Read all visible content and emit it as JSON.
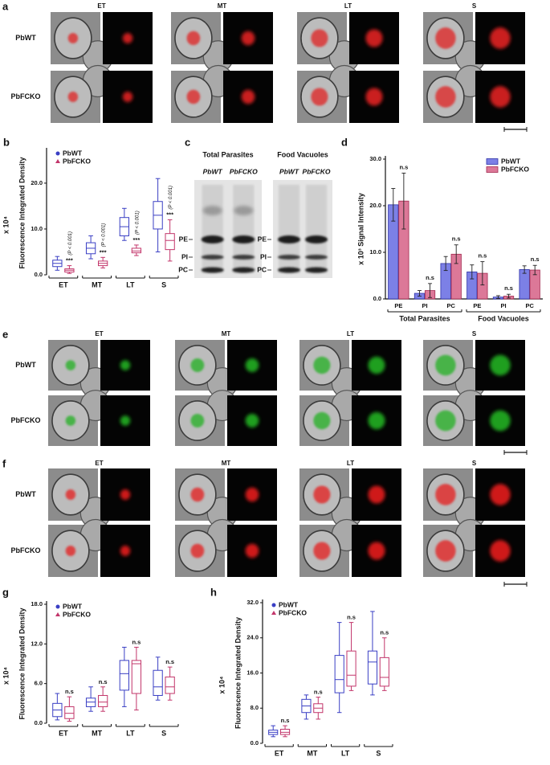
{
  "panels": {
    "a": {
      "label": "a",
      "columns": [
        "ET",
        "MT",
        "LT",
        "S"
      ],
      "rows": [
        "PbWT",
        "PbFCKO"
      ]
    },
    "c": {
      "label": "c",
      "gels": [
        {
          "title": "Total Parasites",
          "lanes": [
            "PbWT",
            "PbFCKO"
          ],
          "bands": [
            "PE",
            "PI",
            "PC"
          ]
        },
        {
          "title": "Food Vacuoles",
          "lanes": [
            "PbWT",
            "PbFCKO"
          ],
          "bands": [
            "PE",
            "PI",
            "PC"
          ]
        }
      ]
    },
    "e": {
      "label": "e",
      "columns": [
        "ET",
        "MT",
        "LT",
        "S"
      ],
      "rows": [
        "PbWT",
        "PbFCKO"
      ]
    },
    "f": {
      "label": "f",
      "columns": [
        "ET",
        "MT",
        "LT",
        "S"
      ],
      "rows": [
        "PbWT",
        "PbFCKO"
      ]
    }
  },
  "chart_data": [
    {
      "type": "box",
      "label": "b",
      "y_label": "Fluorescence Integrated Density",
      "y_scale_label": "x 10⁴",
      "ylim": [
        0,
        27
      ],
      "yticks": [
        {
          "value": 0,
          "label": "0.0"
        },
        {
          "value": 10,
          "label": "10.0"
        },
        {
          "value": 20,
          "label": "20.0"
        }
      ],
      "categories": [
        "ET",
        "MT",
        "LT",
        "S"
      ],
      "legend": "upper left",
      "series": [
        {
          "name": "PbWT",
          "color": "#3a3fc4",
          "marker": "circle",
          "boxes": [
            {
              "min": 1,
              "q1": 1.8,
              "median": 2.5,
              "q3": 3.2,
              "max": 4
            },
            {
              "min": 3.5,
              "q1": 4.6,
              "median": 5.8,
              "q3": 7,
              "max": 8.5
            },
            {
              "min": 7.5,
              "q1": 8.5,
              "median": 10.5,
              "q3": 12.5,
              "max": 14.5
            },
            {
              "min": 5,
              "q1": 10,
              "median": 13,
              "q3": 16,
              "max": 21
            }
          ]
        },
        {
          "name": "PbFCKO",
          "color": "#c2356a",
          "marker": "triangle",
          "boxes": [
            {
              "min": 0.3,
              "q1": 0.6,
              "median": 1,
              "q3": 1.3,
              "max": 2
            },
            {
              "min": 1.5,
              "q1": 2,
              "median": 2.5,
              "q3": 3,
              "max": 3.8
            },
            {
              "min": 4.2,
              "q1": 4.8,
              "median": 5.2,
              "q3": 5.8,
              "max": 6.5
            },
            {
              "min": 3,
              "q1": 5.5,
              "median": 7.5,
              "q3": 9,
              "max": 12
            }
          ],
          "annotations": [
            "***",
            "***",
            "***",
            "***"
          ],
          "p_labels": [
            "(P < 0.001)",
            "(P < 0.001)",
            "(P < 0.001)",
            "(P < 0.001)"
          ]
        }
      ]
    },
    {
      "type": "bar",
      "label": "d",
      "y_label": "x 10³ Signal Intensity",
      "ylim": [
        0,
        30
      ],
      "yticks": [
        {
          "value": 0,
          "label": "0.0"
        },
        {
          "value": 10,
          "label": "10.0"
        },
        {
          "value": 20,
          "label": "20.0"
        },
        {
          "value": 30,
          "label": "30.0"
        }
      ],
      "categories": [
        "PE",
        "PI",
        "PC",
        "PE",
        "PI",
        "PC"
      ],
      "groups": [
        "Total Parasites",
        "Food Vacuoles"
      ],
      "legend": "upper right",
      "series": [
        {
          "name": "PbWT",
          "color": "#2f33a8",
          "fill": "#7c80e6",
          "values": [
            20.2,
            1.2,
            7.6,
            5.8,
            0.4,
            6.3
          ],
          "errors": [
            3.5,
            0.6,
            1.5,
            1.5,
            0.3,
            0.8
          ]
        },
        {
          "name": "PbFCKO",
          "color": "#a3294f",
          "fill": "#dc7898",
          "values": [
            21,
            1.8,
            9.6,
            5.5,
            0.6,
            6.2
          ],
          "errors": [
            6,
            1.5,
            2,
            2.5,
            0.4,
            1
          ],
          "annotations": [
            "n.s",
            "n.s",
            "n.s",
            "n.s",
            "n.s",
            "n.s"
          ]
        }
      ]
    },
    {
      "type": "box",
      "label": "g",
      "y_label": "Fluorescence Integrated Density",
      "y_scale_label": "x 10⁴",
      "ylim": [
        0,
        18
      ],
      "yticks": [
        {
          "value": 0,
          "label": "0.0"
        },
        {
          "value": 6,
          "label": "6.0"
        },
        {
          "value": 12,
          "label": "12.0"
        },
        {
          "value": 18,
          "label": "18.0"
        }
      ],
      "categories": [
        "ET",
        "MT",
        "LT",
        "S"
      ],
      "legend": "upper left",
      "series": [
        {
          "name": "PbWT",
          "color": "#3a3fc4",
          "marker": "circle",
          "boxes": [
            {
              "min": 0.5,
              "q1": 1,
              "median": 2,
              "q3": 3,
              "max": 4.5
            },
            {
              "min": 1.8,
              "q1": 2.5,
              "median": 3.2,
              "q3": 3.8,
              "max": 5.5
            },
            {
              "min": 2.5,
              "q1": 5,
              "median": 7.5,
              "q3": 9.5,
              "max": 11.5
            },
            {
              "min": 3.5,
              "q1": 4.2,
              "median": 5.5,
              "q3": 8,
              "max": 10
            }
          ]
        },
        {
          "name": "PbFCKO",
          "color": "#c2356a",
          "marker": "triangle",
          "boxes": [
            {
              "min": 0.3,
              "q1": 0.7,
              "median": 1.5,
              "q3": 2.5,
              "max": 4
            },
            {
              "min": 1.8,
              "q1": 2.5,
              "median": 3.2,
              "q3": 4.2,
              "max": 5.5
            },
            {
              "min": 2,
              "q1": 4.5,
              "median": 9,
              "q3": 9.5,
              "max": 11.5
            },
            {
              "min": 3.5,
              "q1": 4.5,
              "median": 5.5,
              "q3": 7,
              "max": 8.5
            }
          ],
          "annotations": [
            "n.s",
            "n.s",
            "n.s",
            "n.s"
          ]
        }
      ]
    },
    {
      "type": "box",
      "label": "h",
      "y_label": "Fluorescence Integrated Density",
      "y_scale_label": "x 10⁴",
      "ylim": [
        0,
        32
      ],
      "yticks": [
        {
          "value": 0,
          "label": "0.0"
        },
        {
          "value": 8,
          "label": "8.0"
        },
        {
          "value": 16,
          "label": "16.0"
        },
        {
          "value": 24,
          "label": "24.0"
        },
        {
          "value": 32,
          "label": "32.0"
        }
      ],
      "categories": [
        "ET",
        "MT",
        "LT",
        "S"
      ],
      "legend": "upper left",
      "series": [
        {
          "name": "PbWT",
          "color": "#3a3fc4",
          "marker": "circle",
          "boxes": [
            {
              "min": 1.5,
              "q1": 2,
              "median": 2.5,
              "q3": 3,
              "max": 4
            },
            {
              "min": 5.5,
              "q1": 7,
              "median": 8.5,
              "q3": 10,
              "max": 11
            },
            {
              "min": 7,
              "q1": 11.5,
              "median": 14.5,
              "q3": 20,
              "max": 27.5
            },
            {
              "min": 11,
              "q1": 13.5,
              "median": 18.5,
              "q3": 21,
              "max": 30
            }
          ]
        },
        {
          "name": "PbFCKO",
          "color": "#c2356a",
          "marker": "triangle",
          "boxes": [
            {
              "min": 1.5,
              "q1": 2,
              "median": 2.5,
              "q3": 3.2,
              "max": 4
            },
            {
              "min": 5.5,
              "q1": 7,
              "median": 8,
              "q3": 9,
              "max": 10.5
            },
            {
              "min": 12,
              "q1": 13,
              "median": 15.5,
              "q3": 21,
              "max": 27.5
            },
            {
              "min": 12,
              "q1": 13,
              "median": 15,
              "q3": 19.5,
              "max": 24
            }
          ],
          "annotations": [
            "n.s",
            "n.s",
            "n.s",
            "n.s"
          ]
        }
      ]
    }
  ]
}
